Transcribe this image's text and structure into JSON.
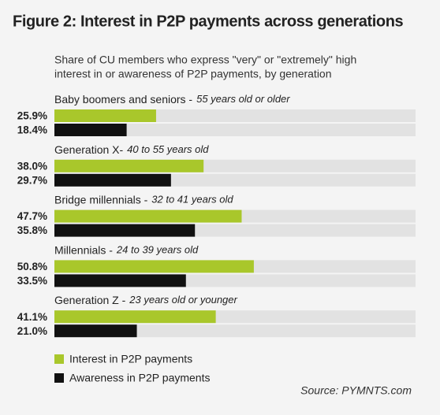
{
  "chart_data": {
    "type": "bar",
    "orientation": "horizontal",
    "title": "Figure 2: Interest in P2P payments across generations",
    "subtitle": [
      "Share of CU members who express \"very\" or \"extremely\" high",
      "interest in or awareness of P2P payments, by generation"
    ],
    "categories": [
      "Baby boomers and seniors -",
      "Generation X-",
      "Bridge millennials -",
      "Millennials -",
      "Generation Z -"
    ],
    "category_notes": [
      "55 years old or older",
      "40 to 55 years old",
      "32 to 41 years old",
      "24 to 39 years old",
      "23 years old or younger"
    ],
    "series": [
      {
        "name": "Interest in P2P payments",
        "color": "#a9c72b",
        "values": [
          25.9,
          38.0,
          47.7,
          50.8,
          41.1
        ],
        "value_labels": [
          "25.9%",
          "38.0%",
          "47.7%",
          "50.8%",
          "41.1%"
        ]
      },
      {
        "name": "Awareness in P2P payments",
        "color": "#111111",
        "values": [
          18.4,
          29.7,
          35.8,
          33.5,
          21.0
        ],
        "value_labels": [
          "18.4%",
          "29.7%",
          "35.8%",
          "33.5%",
          "21.0%"
        ]
      }
    ],
    "xlim": [
      0,
      92
    ],
    "track_color": "#e2e2e2",
    "source": "Source: PYMNTS.com"
  }
}
